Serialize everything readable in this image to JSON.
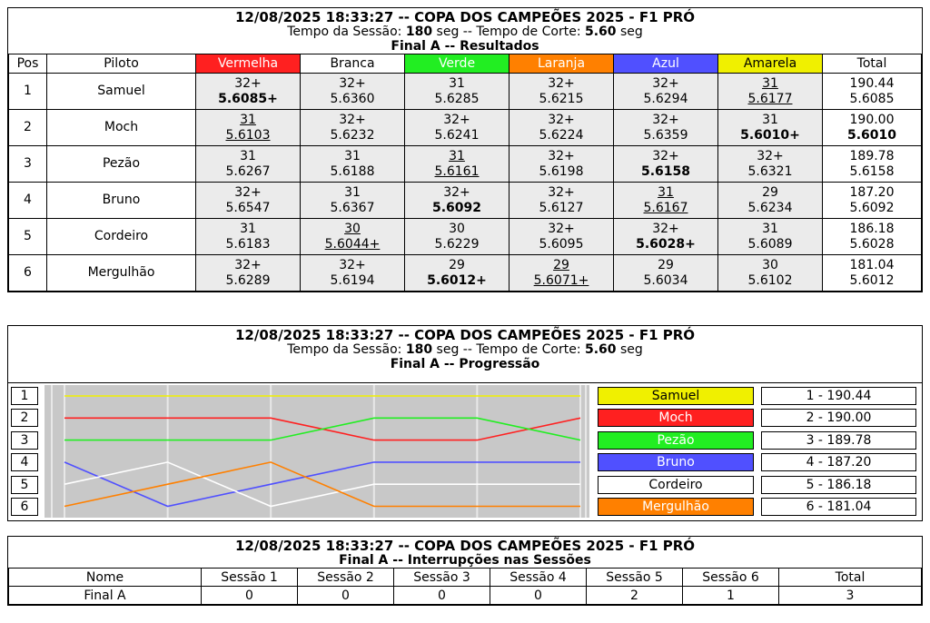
{
  "header": {
    "title": "12/08/2025 18:33:27 -- COPA DOS CAMPEÕES 2025 - F1 PRÓ",
    "session_label": "Tempo da Sessão:",
    "session_value": "180",
    "session_unit": "seg --",
    "cut_label": "Tempo de Corte:",
    "cut_value": "5.60",
    "cut_unit": "seg"
  },
  "results": {
    "final": "Final A",
    "subtitle": "Resultados",
    "columns": [
      {
        "label": "Pos",
        "color": "#ffffff",
        "text": "#000000"
      },
      {
        "label": "Piloto",
        "color": "#ffffff",
        "text": "#000000"
      },
      {
        "label": "Vermelha",
        "color": "#ff2020",
        "text": "#ffffff"
      },
      {
        "label": "Branca",
        "color": "#ffffff",
        "text": "#000000"
      },
      {
        "label": "Verde",
        "color": "#22ee22",
        "text": "#ffffff"
      },
      {
        "label": "Laranja",
        "color": "#ff8000",
        "text": "#ffffff"
      },
      {
        "label": "Azul",
        "color": "#5050ff",
        "text": "#ffffff"
      },
      {
        "label": "Amarela",
        "color": "#f0f000",
        "text": "#000000"
      },
      {
        "label": "Total",
        "color": "#ffffff",
        "text": "#000000"
      }
    ],
    "rows": [
      {
        "pos": "1",
        "pilot": "Samuel",
        "total_pts": "190.44",
        "total_time": "5.6085",
        "cells": [
          {
            "laps": "32+",
            "time": "5.6085+",
            "style": "b"
          },
          {
            "laps": "32+",
            "time": "5.6360",
            "style": ""
          },
          {
            "laps": "31",
            "time": "5.6285",
            "style": ""
          },
          {
            "laps": "32+",
            "time": "5.6215",
            "style": ""
          },
          {
            "laps": "32+",
            "time": "5.6294",
            "style": ""
          },
          {
            "laps": "31",
            "time": "5.6177",
            "style": "u"
          }
        ]
      },
      {
        "pos": "2",
        "pilot": "Moch",
        "total_pts": "190.00",
        "total_time": "5.6010",
        "total_bold": true,
        "cells": [
          {
            "laps": "31",
            "time": "5.6103",
            "style": "u"
          },
          {
            "laps": "32+",
            "time": "5.6232",
            "style": ""
          },
          {
            "laps": "32+",
            "time": "5.6241",
            "style": ""
          },
          {
            "laps": "32+",
            "time": "5.6224",
            "style": ""
          },
          {
            "laps": "32+",
            "time": "5.6359",
            "style": ""
          },
          {
            "laps": "31",
            "time": "5.6010+",
            "style": "b"
          }
        ]
      },
      {
        "pos": "3",
        "pilot": "Pezão",
        "total_pts": "189.78",
        "total_time": "5.6158",
        "cells": [
          {
            "laps": "31",
            "time": "5.6267",
            "style": ""
          },
          {
            "laps": "31",
            "time": "5.6188",
            "style": ""
          },
          {
            "laps": "31",
            "time": "5.6161",
            "style": "u"
          },
          {
            "laps": "32+",
            "time": "5.6198",
            "style": ""
          },
          {
            "laps": "32+",
            "time": "5.6158",
            "style": "b"
          },
          {
            "laps": "32+",
            "time": "5.6321",
            "style": ""
          }
        ]
      },
      {
        "pos": "4",
        "pilot": "Bruno",
        "total_pts": "187.20",
        "total_time": "5.6092",
        "cells": [
          {
            "laps": "32+",
            "time": "5.6547",
            "style": ""
          },
          {
            "laps": "31",
            "time": "5.6367",
            "style": ""
          },
          {
            "laps": "32+",
            "time": "5.6092",
            "style": "b"
          },
          {
            "laps": "32+",
            "time": "5.6127",
            "style": ""
          },
          {
            "laps": "31",
            "time": "5.6167",
            "style": "u"
          },
          {
            "laps": "29",
            "time": "5.6234",
            "style": ""
          }
        ]
      },
      {
        "pos": "5",
        "pilot": "Cordeiro",
        "total_pts": "186.18",
        "total_time": "5.6028",
        "cells": [
          {
            "laps": "31",
            "time": "5.6183",
            "style": ""
          },
          {
            "laps": "30",
            "time": "5.6044+",
            "style": "u"
          },
          {
            "laps": "30",
            "time": "5.6229",
            "style": ""
          },
          {
            "laps": "32+",
            "time": "5.6095",
            "style": ""
          },
          {
            "laps": "32+",
            "time": "5.6028+",
            "style": "b"
          },
          {
            "laps": "31",
            "time": "5.6089",
            "style": ""
          }
        ]
      },
      {
        "pos": "6",
        "pilot": "Mergulhão",
        "total_pts": "181.04",
        "total_time": "5.6012",
        "cells": [
          {
            "laps": "32+",
            "time": "5.6289",
            "style": ""
          },
          {
            "laps": "32+",
            "time": "5.6194",
            "style": ""
          },
          {
            "laps": "29",
            "time": "5.6012+",
            "style": "b"
          },
          {
            "laps": "29",
            "time": "5.6071+",
            "style": "u"
          },
          {
            "laps": "29",
            "time": "5.6034",
            "style": ""
          },
          {
            "laps": "30",
            "time": "5.6102",
            "style": ""
          }
        ]
      }
    ]
  },
  "progression": {
    "final": "Final A",
    "subtitle": "Progressão",
    "positions": [
      "1",
      "2",
      "3",
      "4",
      "5",
      "6"
    ],
    "legend": [
      {
        "name": "Samuel",
        "color": "#f0f000",
        "text": "#000000",
        "total": "1 - 190.44"
      },
      {
        "name": "Moch",
        "color": "#ff2020",
        "text": "#ffffff",
        "total": "2 - 190.00"
      },
      {
        "name": "Pezão",
        "color": "#22ee22",
        "text": "#ffffff",
        "total": "3 - 189.78"
      },
      {
        "name": "Bruno",
        "color": "#5050ff",
        "text": "#ffffff",
        "total": "4 - 187.20"
      },
      {
        "name": "Cordeiro",
        "color": "#ffffff",
        "text": "#000000",
        "total": "5 - 186.18"
      },
      {
        "name": "Mergulhão",
        "color": "#ff8000",
        "text": "#ffffff",
        "total": "6 - 181.04"
      }
    ],
    "chart_data": {
      "type": "line",
      "x": [
        0,
        1,
        2,
        3,
        4,
        5
      ],
      "series": [
        {
          "name": "Samuel",
          "color": "#f0f000",
          "values": [
            1,
            1,
            1,
            1,
            1,
            1
          ]
        },
        {
          "name": "Moch",
          "color": "#ff2020",
          "values": [
            2,
            2,
            2,
            3,
            3,
            2
          ]
        },
        {
          "name": "Pezão",
          "color": "#22ee22",
          "values": [
            3,
            3,
            3,
            2,
            2,
            3
          ]
        },
        {
          "name": "Bruno",
          "color": "#5050ff",
          "values": [
            4,
            6,
            5,
            4,
            4,
            4
          ]
        },
        {
          "name": "Cordeiro",
          "color": "#ffffff",
          "values": [
            5,
            4,
            6,
            5,
            5,
            5
          ]
        },
        {
          "name": "Mergulhão",
          "color": "#ff8000",
          "values": [
            6,
            5,
            4,
            6,
            6,
            6
          ]
        }
      ],
      "ylim": [
        1,
        6
      ],
      "grid": true
    }
  },
  "interruptions": {
    "final": "Final A",
    "subtitle": "Interrupções nas Sessões",
    "columns": [
      "Nome",
      "Sessão 1",
      "Sessão 2",
      "Sessão 3",
      "Sessão 4",
      "Sessão 5",
      "Sessão 6",
      "Total"
    ],
    "rows": [
      [
        "Final A",
        "0",
        "0",
        "0",
        "0",
        "2",
        "1",
        "3"
      ]
    ]
  }
}
